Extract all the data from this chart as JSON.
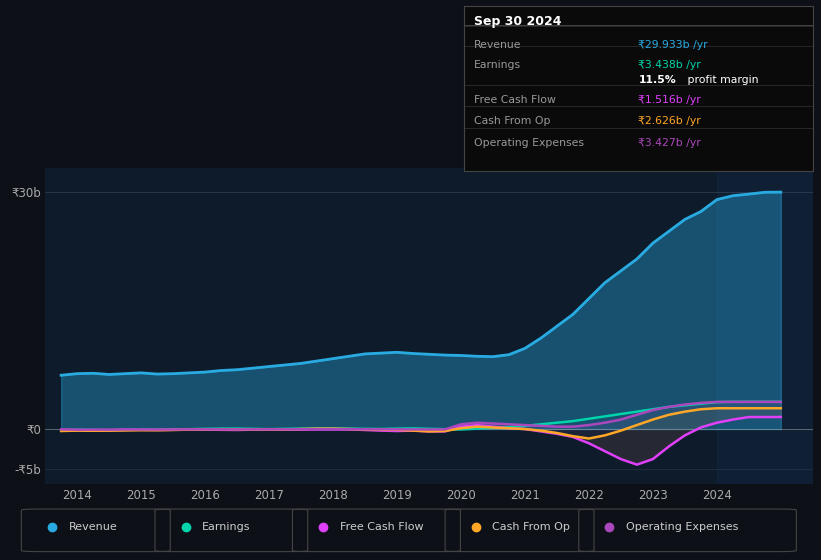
{
  "bg_color": "#0d1117",
  "chart_bg": "#0d1b2a",
  "title": "Sep 30 2024",
  "ylim": [
    -7000000000.0,
    33000000000.0
  ],
  "xlim": [
    2013.5,
    2025.5
  ],
  "xticks": [
    2014,
    2015,
    2016,
    2017,
    2018,
    2019,
    2020,
    2021,
    2022,
    2023,
    2024
  ],
  "series_colors": {
    "revenue": "#29abe2",
    "earnings": "#00d4aa",
    "free_cash_flow": "#e040fb",
    "cash_from_op": "#ffa726",
    "operating_expenses": "#ab47bc"
  },
  "legend_colors": {
    "Revenue": "#29abe2",
    "Earnings": "#00d4aa",
    "Free Cash Flow": "#e040fb",
    "Cash From Op": "#ffa726",
    "Operating Expenses": "#ab47bc"
  },
  "x": [
    2013.75,
    2014.0,
    2014.25,
    2014.5,
    2014.75,
    2015.0,
    2015.25,
    2015.5,
    2015.75,
    2016.0,
    2016.25,
    2016.5,
    2016.75,
    2017.0,
    2017.25,
    2017.5,
    2017.75,
    2018.0,
    2018.25,
    2018.5,
    2018.75,
    2019.0,
    2019.25,
    2019.5,
    2019.75,
    2020.0,
    2020.25,
    2020.5,
    2020.75,
    2021.0,
    2021.25,
    2021.5,
    2021.75,
    2022.0,
    2022.25,
    2022.5,
    2022.75,
    2023.0,
    2023.25,
    2023.5,
    2023.75,
    2024.0,
    2024.25,
    2024.5,
    2024.75,
    2025.0
  ],
  "revenue": [
    6800000000.0,
    7000000000.0,
    7050000000.0,
    6900000000.0,
    7000000000.0,
    7100000000.0,
    6950000000.0,
    7000000000.0,
    7100000000.0,
    7200000000.0,
    7400000000.0,
    7500000000.0,
    7700000000.0,
    7900000000.0,
    8100000000.0,
    8300000000.0,
    8600000000.0,
    8900000000.0,
    9200000000.0,
    9500000000.0,
    9600000000.0,
    9700000000.0,
    9550000000.0,
    9450000000.0,
    9350000000.0,
    9300000000.0,
    9200000000.0,
    9150000000.0,
    9400000000.0,
    10200000000.0,
    11500000000.0,
    13000000000.0,
    14500000000.0,
    16500000000.0,
    18500000000.0,
    20000000000.0,
    21500000000.0,
    23500000000.0,
    25000000000.0,
    26500000000.0,
    27500000000.0,
    29000000000.0,
    29500000000.0,
    29700000000.0,
    29933000000.0,
    29950000000.0
  ],
  "earnings": [
    -150000000.0,
    -100000000.0,
    -120000000.0,
    -150000000.0,
    -100000000.0,
    -80000000.0,
    -60000000.0,
    -50000000.0,
    -20000000.0,
    20000000.0,
    50000000.0,
    50000000.0,
    20000000.0,
    -20000000.0,
    20000000.0,
    50000000.0,
    80000000.0,
    80000000.0,
    50000000.0,
    20000000.0,
    0.0,
    50000000.0,
    80000000.0,
    20000000.0,
    -20000000.0,
    -50000000.0,
    50000000.0,
    150000000.0,
    250000000.0,
    400000000.0,
    600000000.0,
    800000000.0,
    1000000000.0,
    1300000000.0,
    1600000000.0,
    1900000000.0,
    2200000000.0,
    2500000000.0,
    2800000000.0,
    3000000000.0,
    3200000000.0,
    3400000000.0,
    3438000000.0,
    3440000000.0,
    3440000000.0,
    3440000000.0
  ],
  "free_cash_flow": [
    -100000000.0,
    -150000000.0,
    -180000000.0,
    -150000000.0,
    -100000000.0,
    -100000000.0,
    -120000000.0,
    -100000000.0,
    -80000000.0,
    -80000000.0,
    -100000000.0,
    -120000000.0,
    -80000000.0,
    -80000000.0,
    -80000000.0,
    -80000000.0,
    -50000000.0,
    -50000000.0,
    -50000000.0,
    -120000000.0,
    -200000000.0,
    -250000000.0,
    -200000000.0,
    -300000000.0,
    -300000000.0,
    300000000.0,
    500000000.0,
    300000000.0,
    100000000.0,
    0.0,
    -300000000.0,
    -600000000.0,
    -1000000000.0,
    -1800000000.0,
    -2800000000.0,
    -3800000000.0,
    -4500000000.0,
    -3800000000.0,
    -2200000000.0,
    -800000000.0,
    200000000.0,
    800000000.0,
    1200000000.0,
    1516000000.0,
    1520000000.0,
    1520000000.0
  ],
  "cash_from_op": [
    -250000000.0,
    -200000000.0,
    -220000000.0,
    -200000000.0,
    -180000000.0,
    -150000000.0,
    -150000000.0,
    -120000000.0,
    -80000000.0,
    -50000000.0,
    -20000000.0,
    -50000000.0,
    -50000000.0,
    -50000000.0,
    -50000000.0,
    0.0,
    50000000.0,
    50000000.0,
    0.0,
    -50000000.0,
    -100000000.0,
    -100000000.0,
    -200000000.0,
    -300000000.0,
    -250000000.0,
    100000000.0,
    300000000.0,
    200000000.0,
    100000000.0,
    0.0,
    -200000000.0,
    -500000000.0,
    -900000000.0,
    -1200000000.0,
    -800000000.0,
    -200000000.0,
    500000000.0,
    1200000000.0,
    1800000000.0,
    2200000000.0,
    2500000000.0,
    2626000000.0,
    2630000000.0,
    2630000000.0,
    2630000000.0,
    2630000000.0
  ],
  "operating_expenses": [
    -50000000.0,
    -80000000.0,
    -80000000.0,
    -80000000.0,
    -60000000.0,
    -60000000.0,
    -60000000.0,
    -60000000.0,
    -50000000.0,
    -40000000.0,
    -40000000.0,
    -50000000.0,
    -40000000.0,
    -40000000.0,
    -40000000.0,
    -30000000.0,
    -20000000.0,
    -20000000.0,
    -20000000.0,
    -30000000.0,
    -40000000.0,
    -40000000.0,
    -50000000.0,
    -60000000.0,
    -50000000.0,
    600000000.0,
    800000000.0,
    700000000.0,
    600000000.0,
    500000000.0,
    400000000.0,
    300000000.0,
    300000000.0,
    500000000.0,
    800000000.0,
    1200000000.0,
    1800000000.0,
    2400000000.0,
    2800000000.0,
    3100000000.0,
    3300000000.0,
    3427000000.0,
    3430000000.0,
    3430000000.0,
    3430000000.0,
    3430000000.0
  ],
  "shade_start": 2024.0,
  "info_rows": [
    {
      "label": "Revenue",
      "value": "₹29.933b /yr",
      "vcolor": "#29abe2"
    },
    {
      "label": "Earnings",
      "value": "₹3.438b /yr",
      "vcolor": "#00d4aa"
    },
    {
      "label": "",
      "value": "profit margin",
      "vcolor": "#ffffff",
      "prefix": "11.5%"
    },
    {
      "label": "Free Cash Flow",
      "value": "₹1.516b /yr",
      "vcolor": "#e040fb"
    },
    {
      "label": "Cash From Op",
      "value": "₹2.626b /yr",
      "vcolor": "#ffa726"
    },
    {
      "label": "Operating Expenses",
      "value": "₹3.427b /yr",
      "vcolor": "#ab47bc"
    }
  ]
}
